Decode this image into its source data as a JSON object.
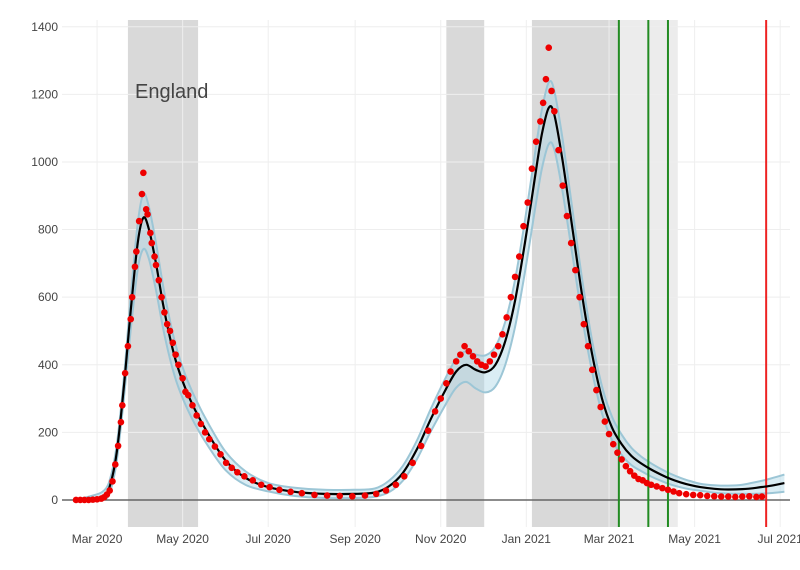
{
  "chart_data": {
    "type": "scatter",
    "title": "",
    "xlabel": "",
    "ylabel": "",
    "annotation": "England",
    "xlim": [
      "2020-02-05",
      "2021-07-08"
    ],
    "ylim": [
      -80,
      1420
    ],
    "y_ticks": [
      0,
      200,
      400,
      600,
      800,
      1000,
      1200,
      1400
    ],
    "x_ticks": [
      {
        "date": "2020-03-01",
        "label": "Mar 2020"
      },
      {
        "date": "2020-05-01",
        "label": "May 2020"
      },
      {
        "date": "2020-07-01",
        "label": "Jul 2020"
      },
      {
        "date": "2020-09-01",
        "label": "Sep 2020"
      },
      {
        "date": "2020-11-01",
        "label": "Nov 2020"
      },
      {
        "date": "2021-01-01",
        "label": "Jan 2021"
      },
      {
        "date": "2021-03-01",
        "label": "Mar 2021"
      },
      {
        "date": "2021-05-01",
        "label": "May 2021"
      },
      {
        "date": "2021-07-01",
        "label": "Jul 2021"
      }
    ],
    "shaded_periods": [
      {
        "start": "2020-03-23",
        "end": "2020-05-12",
        "shade": "dark"
      },
      {
        "start": "2020-11-05",
        "end": "2020-12-02",
        "shade": "dark"
      },
      {
        "start": "2021-01-05",
        "end": "2021-03-08",
        "shade": "dark"
      },
      {
        "start": "2021-03-08",
        "end": "2021-04-19",
        "shade": "light"
      }
    ],
    "green_vlines": [
      "2021-03-08",
      "2021-03-29",
      "2021-04-12"
    ],
    "red_vline": "2021-06-21",
    "colors": {
      "points": "#ee0000",
      "fit": "#000000",
      "ci_band": "#add8e6",
      "ci_edge": "#9cc6d6",
      "shade_dark": "#d9d9d9",
      "shade_light": "#ececec",
      "green_line": "#228b22",
      "red_line": "#ee2222",
      "zero_line": "#666666",
      "grid": "#eeeeee"
    },
    "series": [
      {
        "type": "points",
        "points": [
          [
            "2020-02-15",
            0
          ],
          [
            "2020-02-18",
            0
          ],
          [
            "2020-02-21",
            0
          ],
          [
            "2020-02-24",
            0
          ],
          [
            "2020-02-27",
            1
          ],
          [
            "2020-03-01",
            2
          ],
          [
            "2020-03-04",
            4
          ],
          [
            "2020-03-06",
            8
          ],
          [
            "2020-03-08",
            16
          ],
          [
            "2020-03-10",
            28
          ],
          [
            "2020-03-12",
            55
          ],
          [
            "2020-03-14",
            105
          ],
          [
            "2020-03-16",
            160
          ],
          [
            "2020-03-18",
            230
          ],
          [
            "2020-03-19",
            280
          ],
          [
            "2020-03-21",
            375
          ],
          [
            "2020-03-23",
            455
          ],
          [
            "2020-03-25",
            535
          ],
          [
            "2020-03-26",
            600
          ],
          [
            "2020-03-28",
            690
          ],
          [
            "2020-03-29",
            735
          ],
          [
            "2020-03-31",
            825
          ],
          [
            "2020-04-02",
            905
          ],
          [
            "2020-04-03",
            968
          ],
          [
            "2020-04-05",
            860
          ],
          [
            "2020-04-06",
            845
          ],
          [
            "2020-04-08",
            790
          ],
          [
            "2020-04-09",
            760
          ],
          [
            "2020-04-11",
            720
          ],
          [
            "2020-04-12",
            695
          ],
          [
            "2020-04-14",
            650
          ],
          [
            "2020-04-16",
            600
          ],
          [
            "2020-04-18",
            555
          ],
          [
            "2020-04-20",
            520
          ],
          [
            "2020-04-22",
            500
          ],
          [
            "2020-04-24",
            465
          ],
          [
            "2020-04-26",
            430
          ],
          [
            "2020-04-28",
            400
          ],
          [
            "2020-05-01",
            360
          ],
          [
            "2020-05-03",
            320
          ],
          [
            "2020-05-05",
            310
          ],
          [
            "2020-05-08",
            280
          ],
          [
            "2020-05-11",
            250
          ],
          [
            "2020-05-14",
            225
          ],
          [
            "2020-05-17",
            200
          ],
          [
            "2020-05-20",
            180
          ],
          [
            "2020-05-24",
            158
          ],
          [
            "2020-05-28",
            135
          ],
          [
            "2020-06-01",
            110
          ],
          [
            "2020-06-05",
            95
          ],
          [
            "2020-06-09",
            82
          ],
          [
            "2020-06-14",
            70
          ],
          [
            "2020-06-20",
            58
          ],
          [
            "2020-06-26",
            45
          ],
          [
            "2020-07-02",
            38
          ],
          [
            "2020-07-09",
            30
          ],
          [
            "2020-07-17",
            24
          ],
          [
            "2020-07-25",
            20
          ],
          [
            "2020-08-03",
            15
          ],
          [
            "2020-08-12",
            13
          ],
          [
            "2020-08-21",
            12
          ],
          [
            "2020-08-30",
            11
          ],
          [
            "2020-09-08",
            13
          ],
          [
            "2020-09-16",
            18
          ],
          [
            "2020-09-23",
            28
          ],
          [
            "2020-09-30",
            45
          ],
          [
            "2020-10-06",
            70
          ],
          [
            "2020-10-12",
            110
          ],
          [
            "2020-10-18",
            160
          ],
          [
            "2020-10-23",
            205
          ],
          [
            "2020-10-28",
            262
          ],
          [
            "2020-11-01",
            300
          ],
          [
            "2020-11-05",
            345
          ],
          [
            "2020-11-08",
            380
          ],
          [
            "2020-11-12",
            410
          ],
          [
            "2020-11-15",
            430
          ],
          [
            "2020-11-18",
            455
          ],
          [
            "2020-11-21",
            440
          ],
          [
            "2020-11-24",
            425
          ],
          [
            "2020-11-27",
            410
          ],
          [
            "2020-11-30",
            400
          ],
          [
            "2020-12-03",
            395
          ],
          [
            "2020-12-06",
            410
          ],
          [
            "2020-12-09",
            430
          ],
          [
            "2020-12-12",
            455
          ],
          [
            "2020-12-15",
            490
          ],
          [
            "2020-12-18",
            540
          ],
          [
            "2020-12-21",
            600
          ],
          [
            "2020-12-24",
            660
          ],
          [
            "2020-12-27",
            720
          ],
          [
            "2020-12-30",
            810
          ],
          [
            "2021-01-02",
            880
          ],
          [
            "2021-01-05",
            980
          ],
          [
            "2021-01-08",
            1060
          ],
          [
            "2021-01-11",
            1120
          ],
          [
            "2021-01-13",
            1175
          ],
          [
            "2021-01-15",
            1245
          ],
          [
            "2021-01-17",
            1338
          ],
          [
            "2021-01-19",
            1210
          ],
          [
            "2021-01-21",
            1150
          ],
          [
            "2021-01-24",
            1035
          ],
          [
            "2021-01-27",
            930
          ],
          [
            "2021-01-30",
            840
          ],
          [
            "2021-02-02",
            760
          ],
          [
            "2021-02-05",
            680
          ],
          [
            "2021-02-08",
            600
          ],
          [
            "2021-02-11",
            520
          ],
          [
            "2021-02-14",
            455
          ],
          [
            "2021-02-17",
            385
          ],
          [
            "2021-02-20",
            325
          ],
          [
            "2021-02-23",
            275
          ],
          [
            "2021-02-26",
            232
          ],
          [
            "2021-03-01",
            195
          ],
          [
            "2021-03-04",
            165
          ],
          [
            "2021-03-07",
            140
          ],
          [
            "2021-03-10",
            120
          ],
          [
            "2021-03-13",
            100
          ],
          [
            "2021-03-16",
            85
          ],
          [
            "2021-03-19",
            72
          ],
          [
            "2021-03-22",
            62
          ],
          [
            "2021-03-25",
            58
          ],
          [
            "2021-03-28",
            50
          ],
          [
            "2021-03-31",
            45
          ],
          [
            "2021-04-04",
            40
          ],
          [
            "2021-04-08",
            35
          ],
          [
            "2021-04-12",
            30
          ],
          [
            "2021-04-16",
            25
          ],
          [
            "2021-04-20",
            20
          ],
          [
            "2021-04-25",
            17
          ],
          [
            "2021-04-30",
            15
          ],
          [
            "2021-05-05",
            14
          ],
          [
            "2021-05-10",
            12
          ],
          [
            "2021-05-15",
            11
          ],
          [
            "2021-05-20",
            10
          ],
          [
            "2021-05-25",
            10
          ],
          [
            "2021-05-30",
            9
          ],
          [
            "2021-06-04",
            10
          ],
          [
            "2021-06-09",
            11
          ],
          [
            "2021-06-14",
            9
          ],
          [
            "2021-06-18",
            10
          ]
        ]
      },
      {
        "type": "fit",
        "points": [
          [
            "2020-02-15",
            0
          ],
          [
            "2020-02-25",
            2
          ],
          [
            "2020-03-05",
            10
          ],
          [
            "2020-03-10",
            40
          ],
          [
            "2020-03-15",
            140
          ],
          [
            "2020-03-20",
            330
          ],
          [
            "2020-03-25",
            560
          ],
          [
            "2020-03-30",
            760
          ],
          [
            "2020-04-03",
            835
          ],
          [
            "2020-04-07",
            800
          ],
          [
            "2020-04-12",
            700
          ],
          [
            "2020-04-17",
            580
          ],
          [
            "2020-04-22",
            480
          ],
          [
            "2020-04-27",
            400
          ],
          [
            "2020-05-03",
            330
          ],
          [
            "2020-05-10",
            265
          ],
          [
            "2020-05-20",
            190
          ],
          [
            "2020-06-01",
            115
          ],
          [
            "2020-06-15",
            65
          ],
          [
            "2020-07-01",
            38
          ],
          [
            "2020-07-20",
            24
          ],
          [
            "2020-08-10",
            18
          ],
          [
            "2020-08-31",
            18
          ],
          [
            "2020-09-15",
            22
          ],
          [
            "2020-09-25",
            40
          ],
          [
            "2020-10-05",
            80
          ],
          [
            "2020-10-15",
            150
          ],
          [
            "2020-10-25",
            240
          ],
          [
            "2020-11-05",
            330
          ],
          [
            "2020-11-12",
            380
          ],
          [
            "2020-11-19",
            400
          ],
          [
            "2020-11-26",
            385
          ],
          [
            "2020-12-03",
            378
          ],
          [
            "2020-12-10",
            400
          ],
          [
            "2020-12-17",
            470
          ],
          [
            "2020-12-24",
            590
          ],
          [
            "2020-12-31",
            760
          ],
          [
            "2021-01-07",
            950
          ],
          [
            "2021-01-12",
            1080
          ],
          [
            "2021-01-17",
            1160
          ],
          [
            "2021-01-21",
            1140
          ],
          [
            "2021-01-27",
            1000
          ],
          [
            "2021-02-03",
            800
          ],
          [
            "2021-02-10",
            600
          ],
          [
            "2021-02-17",
            430
          ],
          [
            "2021-02-24",
            300
          ],
          [
            "2021-03-03",
            215
          ],
          [
            "2021-03-10",
            165
          ],
          [
            "2021-03-17",
            130
          ],
          [
            "2021-03-24",
            108
          ],
          [
            "2021-03-31",
            90
          ],
          [
            "2021-04-07",
            75
          ],
          [
            "2021-04-14",
            62
          ],
          [
            "2021-04-21",
            52
          ],
          [
            "2021-04-28",
            44
          ],
          [
            "2021-05-05",
            38
          ],
          [
            "2021-05-15",
            33
          ],
          [
            "2021-05-25",
            31
          ],
          [
            "2021-06-04",
            32
          ],
          [
            "2021-06-14",
            36
          ],
          [
            "2021-06-24",
            42
          ],
          [
            "2021-07-04",
            50
          ]
        ]
      }
    ],
    "band_half_width": [
      [
        "2020-02-15",
        2
      ],
      [
        "2020-03-20",
        25
      ],
      [
        "2020-04-03",
        70
      ],
      [
        "2020-05-01",
        40
      ],
      [
        "2020-07-01",
        12
      ],
      [
        "2020-09-15",
        12
      ],
      [
        "2020-11-05",
        35
      ],
      [
        "2020-11-19",
        40
      ],
      [
        "2020-12-03",
        50
      ],
      [
        "2021-01-17",
        75
      ],
      [
        "2021-02-17",
        40
      ],
      [
        "2021-03-24",
        20
      ],
      [
        "2021-05-05",
        10
      ],
      [
        "2021-06-01",
        12
      ],
      [
        "2021-07-04",
        25
      ]
    ]
  }
}
